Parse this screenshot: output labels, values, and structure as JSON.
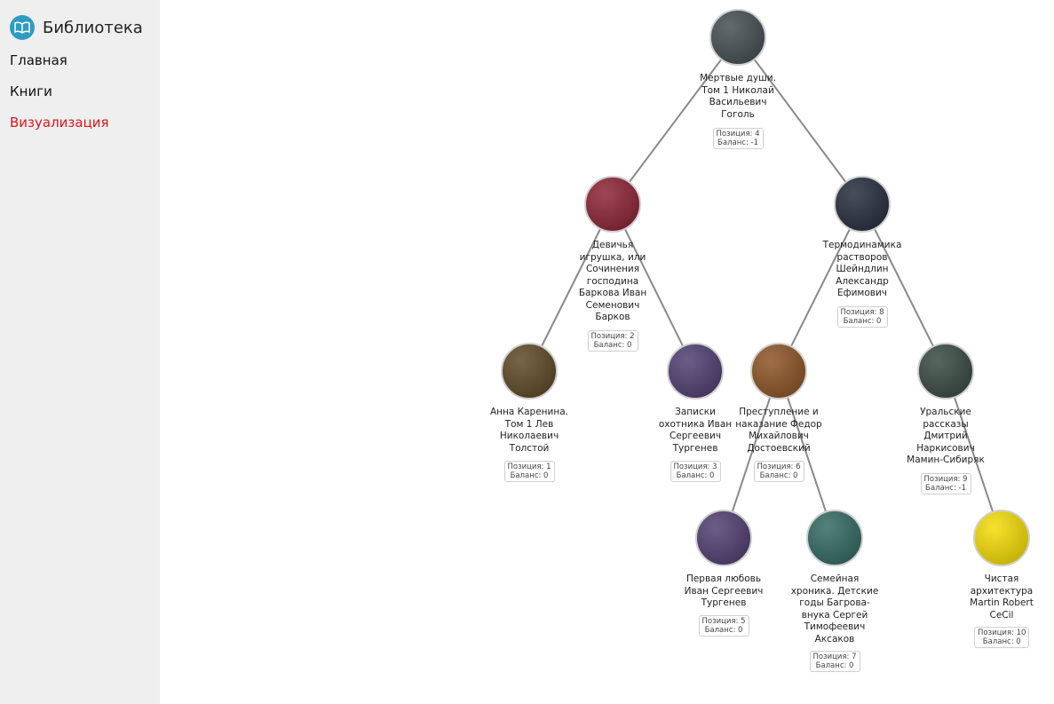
{
  "sidebar": {
    "brand": "Библиотека",
    "brand_icon": "open-book-icon",
    "accent": "#2e9cc1",
    "active_color": "#e0141e",
    "items": [
      {
        "label": "Главная",
        "active": false
      },
      {
        "label": "Книги",
        "active": false
      },
      {
        "label": "Визуализация",
        "active": true
      }
    ]
  },
  "tree": {
    "nodes": [
      {
        "id": 4,
        "title": "Мертвые души. Том 1 Николай Васильевич Гоголь",
        "position": "Позиция: 4",
        "balance": "Баланс: -1",
        "cover": "#3f4a4e"
      },
      {
        "id": 2,
        "title": "Девичья игрушка, или Сочинения господина Баркова Иван Семенович Барков",
        "position": "Позиция: 2",
        "balance": "Баланс: 0",
        "cover": "#8a1e30"
      },
      {
        "id": 8,
        "title": "Термодинамика растворов Шейндлин Александр Ефимович",
        "position": "Позиция: 8",
        "balance": "Баланс: 0",
        "cover": "#202838"
      },
      {
        "id": 1,
        "title": "Анна Каренина. Том 1 Лев Николаевич Толстой",
        "position": "Позиция: 1",
        "balance": "Баланс: 0",
        "cover": "#5a4420"
      },
      {
        "id": 3,
        "title": "Записки охотника Иван Сергеевич Тургенев",
        "position": "Позиция: 3",
        "balance": "Баланс: 0",
        "cover": "#4c3a6e"
      },
      {
        "id": 6,
        "title": "Преступление и наказание Федор Михайлович Достоевский",
        "position": "Позиция: 6",
        "balance": "Баланс: 0",
        "cover": "#8a5020"
      },
      {
        "id": 9,
        "title": "Уральские рассказы Дмитрий Наркисович Мамин-Сибиряк",
        "position": "Позиция: 9",
        "balance": "Баланс: -1",
        "cover": "#34453e"
      },
      {
        "id": 5,
        "title": "Первая любовь Иван Сергеевич Тургенев",
        "position": "Позиция: 5",
        "balance": "Баланс: 0",
        "cover": "#4c3a6e"
      },
      {
        "id": 7,
        "title": "Семейная хроника. Детские годы Багрова-внука Сергей Тимофеевич Аксаков",
        "position": "Позиция: 7",
        "balance": "Баланс: 0",
        "cover": "#2e6660"
      },
      {
        "id": 10,
        "title": "Чистая архитектура Martin Robert CeCil",
        "position": "Позиция: 10",
        "balance": "Баланс: 0",
        "cover": "#f5dc00"
      }
    ]
  }
}
